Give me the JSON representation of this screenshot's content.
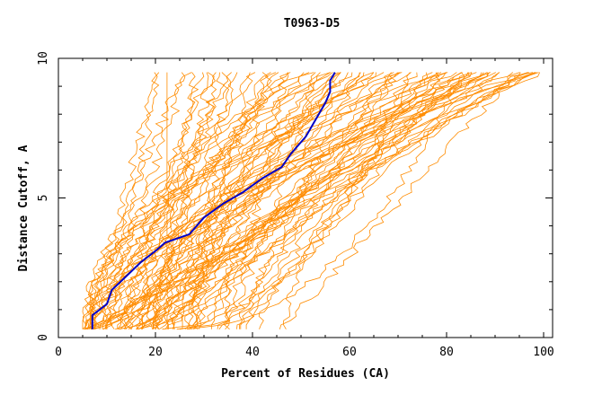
{
  "chart_data": {
    "type": "line",
    "title": "T0963-D5",
    "xlabel": "Percent of Residues (CA)",
    "ylabel": "Distance Cutoff, A",
    "xlim": [
      0,
      100
    ],
    "ylim": [
      0,
      10
    ],
    "x_ticks": [
      "0",
      "20",
      "40",
      "60",
      "80",
      "100"
    ],
    "y_ticks": [
      "0",
      "5",
      "10"
    ],
    "grid": false,
    "legend": "none",
    "colors": {
      "highlight": "#0000c8",
      "background_series": "#ff8c00",
      "axes": "#000000"
    },
    "highlight_series": {
      "x": [
        7,
        7,
        8.5,
        10,
        11,
        14,
        17,
        20,
        22,
        27,
        30,
        34,
        38,
        42,
        46,
        48,
        51,
        53,
        55,
        56,
        56,
        57
      ],
      "y": [
        0.3,
        0.8,
        1.0,
        1.2,
        1.7,
        2.2,
        2.7,
        3.1,
        3.4,
        3.7,
        4.3,
        4.8,
        5.2,
        5.7,
        6.1,
        6.6,
        7.2,
        7.8,
        8.4,
        8.8,
        9.2,
        9.5
      ]
    },
    "background_family": {
      "count": 90,
      "start_x_range": [
        5,
        55
      ],
      "end_x_range": [
        17,
        100
      ],
      "y_range": [
        0.3,
        9.5
      ]
    }
  }
}
